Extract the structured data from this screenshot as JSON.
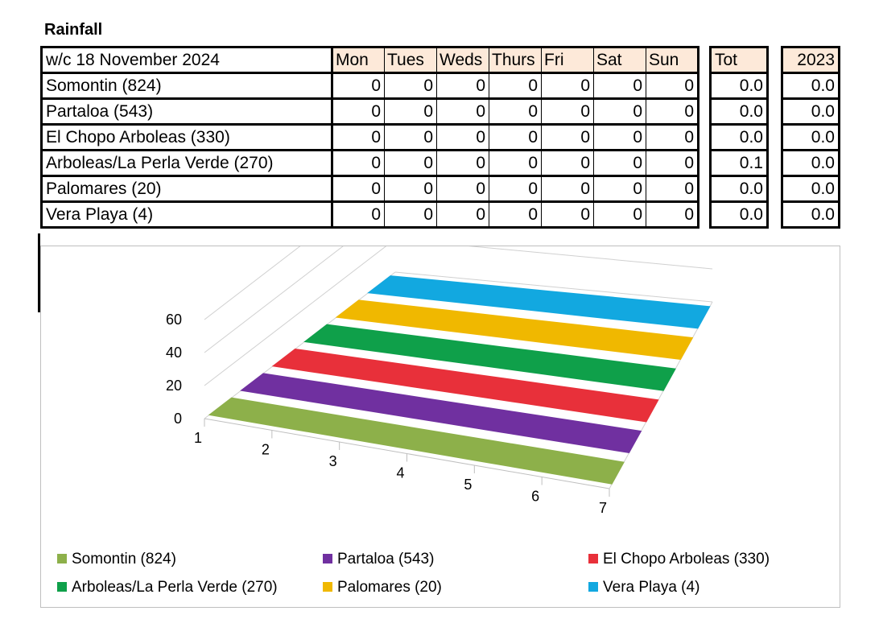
{
  "title": "Rainfall",
  "table": {
    "week_label": "w/c 18 November 2024",
    "days": [
      "Mon",
      "Tues",
      "Weds",
      "Thurs",
      "Fri",
      "Sat",
      "Sun"
    ],
    "tot_header": "Tot",
    "year_header": "2023",
    "rows": [
      {
        "site": "Somontin (824)",
        "days": [
          "0",
          "0",
          "0",
          "0",
          "0",
          "0",
          "0"
        ],
        "tot": "0.0",
        "year": "0.0"
      },
      {
        "site": "Partaloa (543)",
        "days": [
          "0",
          "0",
          "0",
          "0",
          "0",
          "0",
          "0"
        ],
        "tot": "0.0",
        "year": "0.0"
      },
      {
        "site": "El Chopo Arboleas (330)",
        "days": [
          "0",
          "0",
          "0",
          "0",
          "0",
          "0",
          "0"
        ],
        "tot": "0.0",
        "year": "0.0"
      },
      {
        "site": "Arboleas/La Perla Verde (270)",
        "days": [
          "0",
          "0",
          "0",
          "0",
          "0",
          "0",
          "0"
        ],
        "tot": "0.1",
        "year": "0.0"
      },
      {
        "site": "Palomares (20)",
        "days": [
          "0",
          "0",
          "0",
          "0",
          "0",
          "0",
          "0"
        ],
        "tot": "0.0",
        "year": "0.0"
      },
      {
        "site": "Vera Playa (4)",
        "days": [
          "0",
          "0",
          "0",
          "0",
          "0",
          "0",
          "0"
        ],
        "tot": "0.0",
        "year": "0.0"
      }
    ]
  },
  "chart_data": {
    "type": "area",
    "view": "3d",
    "title": "",
    "xlabel": "",
    "ylabel": "",
    "x": [
      1,
      2,
      3,
      4,
      5,
      6,
      7
    ],
    "yticks": [
      0,
      20,
      40,
      60
    ],
    "ylim": [
      0,
      60
    ],
    "grid": true,
    "legend": "bottom",
    "series": [
      {
        "name": "Somontin (824)",
        "color": "#8db04a",
        "values": [
          0,
          0,
          0,
          0,
          0,
          0,
          0
        ]
      },
      {
        "name": "Partaloa (543)",
        "color": "#7030a0",
        "values": [
          0,
          0,
          0,
          0,
          0,
          0,
          0
        ]
      },
      {
        "name": "El Chopo Arboleas (330)",
        "color": "#e8303a",
        "values": [
          0,
          0,
          0,
          0,
          0,
          0,
          0
        ]
      },
      {
        "name": "Arboleas/La Perla Verde (270)",
        "color": "#0fa04a",
        "values": [
          0,
          0,
          0,
          0,
          0,
          0,
          0
        ]
      },
      {
        "name": "Palomares (20)",
        "color": "#f0b800",
        "values": [
          0,
          0,
          0,
          0,
          0,
          0,
          0
        ]
      },
      {
        "name": "Vera Playa (4)",
        "color": "#12a8e0",
        "values": [
          0,
          0,
          0,
          0,
          0,
          0,
          0
        ]
      }
    ]
  }
}
